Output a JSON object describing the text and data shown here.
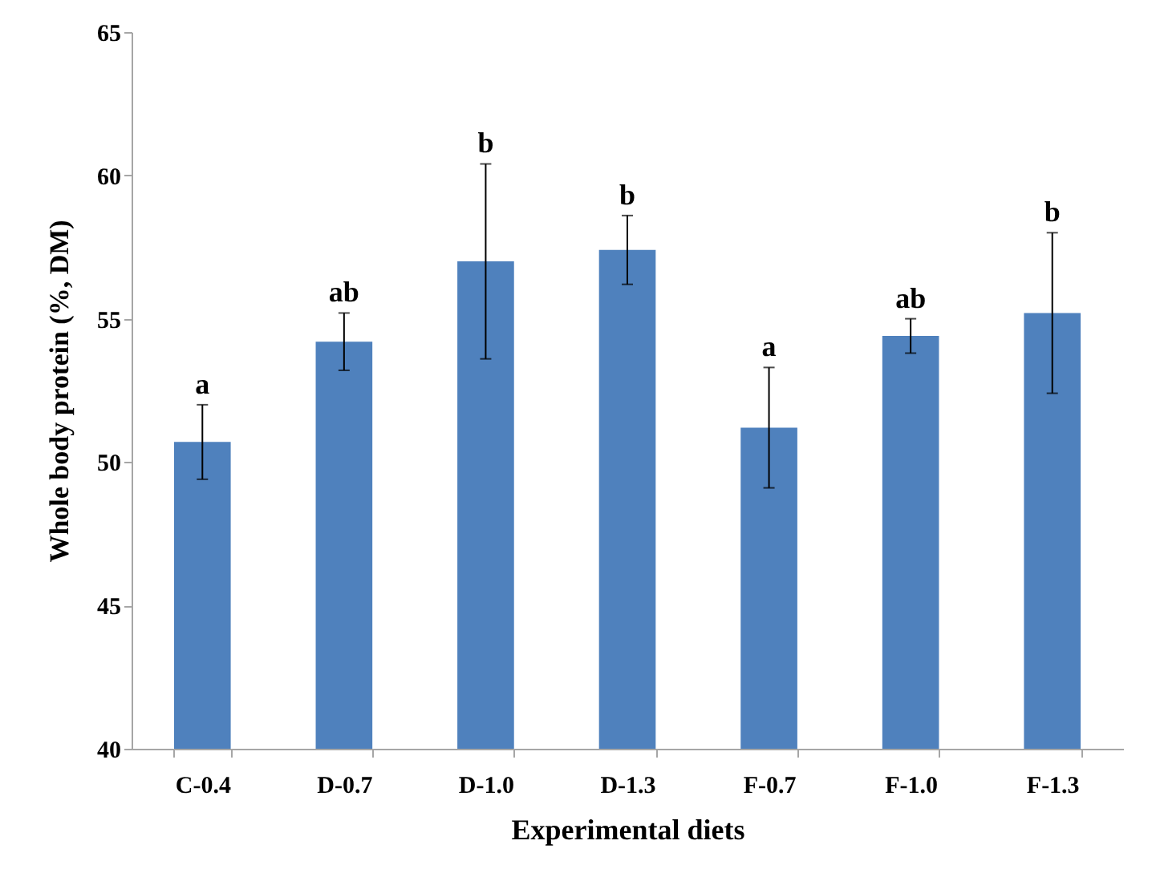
{
  "chart_data": {
    "type": "bar",
    "xlabel": "Experimental diets",
    "ylabel": "Whole body protein (%, DM)",
    "categories": [
      "C-0.4",
      "D-0.7",
      "D-1.0",
      "D-1.3",
      "F-0.7",
      "F-1.0",
      "F-1.3"
    ],
    "values": [
      50.7,
      54.2,
      57.0,
      57.4,
      51.2,
      54.4,
      55.2
    ],
    "errors": [
      1.3,
      1.0,
      3.4,
      1.2,
      2.1,
      0.6,
      2.8
    ],
    "color": "#4f81bd",
    "ylim": [
      40,
      65
    ],
    "yticks": [
      40,
      45,
      50,
      55,
      60,
      65
    ],
    "grid": false,
    "annotations": [
      {
        "text": "a",
        "x": "C-0.4",
        "y": 52.0
      },
      {
        "text": "ab",
        "x": "D-0.7",
        "y": 55.2
      },
      {
        "text": "b",
        "x": "D-1.0",
        "y": 60.4
      },
      {
        "text": "b",
        "x": "D-1.3",
        "y": 58.6
      },
      {
        "text": "a",
        "x": "F-0.7",
        "y": 53.3
      },
      {
        "text": "ab",
        "x": "F-1.0",
        "y": 55.0
      },
      {
        "text": "b",
        "x": "F-1.3",
        "y": 58.0
      }
    ]
  }
}
